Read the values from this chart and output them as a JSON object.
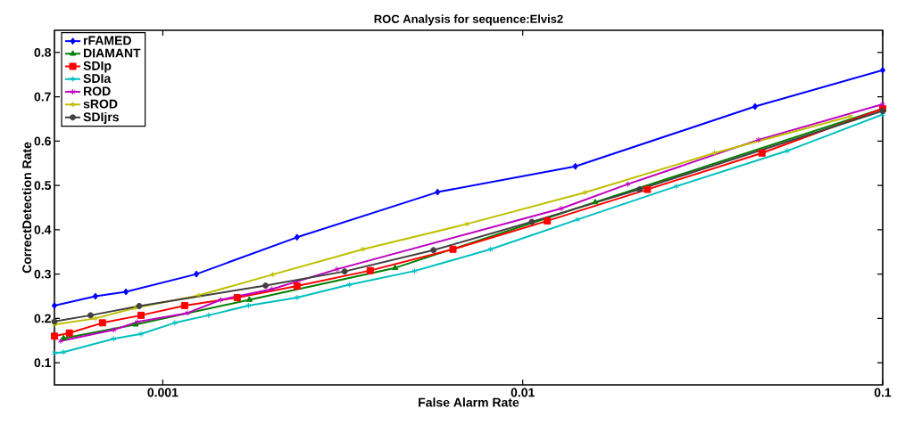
{
  "chart_data": {
    "type": "line",
    "title": "ROC Analysis for sequence:Elvis2",
    "xlabel": "False Alarm Rate",
    "ylabel": "CorrectDetection Rate",
    "log": "x",
    "xlim": [
      0.0005,
      0.1
    ],
    "ylim": [
      0.05,
      0.85
    ],
    "xticks": [
      0.001,
      0.01,
      0.1
    ],
    "yticks": [
      0.1,
      0.2,
      0.3,
      0.4,
      0.5,
      0.6,
      0.7,
      0.8
    ],
    "grid": false,
    "legend": "top left",
    "line_style": "solid",
    "series": [
      {
        "name": "rFAMED",
        "color": "#0000ff",
        "marker": "diamond",
        "x": [
          0.0005,
          0.00065,
          0.00079,
          0.00124,
          0.00236,
          0.0058,
          0.014,
          0.0442,
          0.1
        ],
        "values": [
          0.229,
          0.25,
          0.26,
          0.3,
          0.383,
          0.485,
          0.543,
          0.678,
          0.76
        ]
      },
      {
        "name": "DIAMANT",
        "color": "#008000",
        "marker": "triangle",
        "x": [
          0.00053,
          0.00084,
          0.00174,
          0.00442,
          0.0159,
          0.1
        ],
        "values": [
          0.155,
          0.186,
          0.242,
          0.314,
          0.462,
          0.673
        ]
      },
      {
        "name": "SDIp",
        "color": "#ff0000",
        "marker": "square",
        "x": [
          0.0005,
          0.00055,
          0.00068,
          0.00087,
          0.00115,
          0.00161,
          0.00236,
          0.00377,
          0.0064,
          0.0117,
          0.0222,
          0.0462,
          0.1
        ],
        "values": [
          0.16,
          0.167,
          0.19,
          0.207,
          0.229,
          0.247,
          0.273,
          0.308,
          0.356,
          0.42,
          0.491,
          0.573,
          0.673
        ]
      },
      {
        "name": "SDIa",
        "color": "#00bfbf",
        "marker": "cross",
        "x": [
          0.0005,
          0.00053,
          0.00073,
          0.00087,
          0.00108,
          0.00134,
          0.00173,
          0.00236,
          0.0033,
          0.00501,
          0.00814,
          0.0142,
          0.0267,
          0.0543,
          0.1
        ],
        "values": [
          0.122,
          0.124,
          0.154,
          0.165,
          0.19,
          0.207,
          0.229,
          0.247,
          0.276,
          0.307,
          0.356,
          0.423,
          0.498,
          0.578,
          0.66
        ]
      },
      {
        "name": "ROD",
        "color": "#bf00bf",
        "marker": "cross",
        "x": [
          0.00052,
          0.00073,
          0.00085,
          0.00117,
          0.00145,
          0.00201,
          0.00305,
          0.0128,
          0.0196,
          0.0452,
          0.1
        ],
        "values": [
          0.149,
          0.174,
          0.192,
          0.212,
          0.242,
          0.266,
          0.311,
          0.448,
          0.503,
          0.603,
          0.683
        ]
      },
      {
        "name": "sROD",
        "color": "#bfbf00",
        "marker": "cross",
        "x": [
          0.0005,
          0.00065,
          0.00084,
          0.00126,
          0.00202,
          0.0036,
          0.007,
          0.0149,
          0.0341,
          0.0815
        ],
        "values": [
          0.186,
          0.2,
          0.224,
          0.252,
          0.299,
          0.356,
          0.413,
          0.484,
          0.573,
          0.656
        ]
      },
      {
        "name": "SDIjrs",
        "color": "#404040",
        "marker": "circle",
        "x": [
          0.0005,
          0.00063,
          0.00086,
          0.00193,
          0.0032,
          0.00565,
          0.0106,
          0.0211,
          0.1
        ],
        "values": [
          0.193,
          0.207,
          0.228,
          0.274,
          0.306,
          0.354,
          0.418,
          0.491,
          0.668
        ]
      }
    ]
  }
}
